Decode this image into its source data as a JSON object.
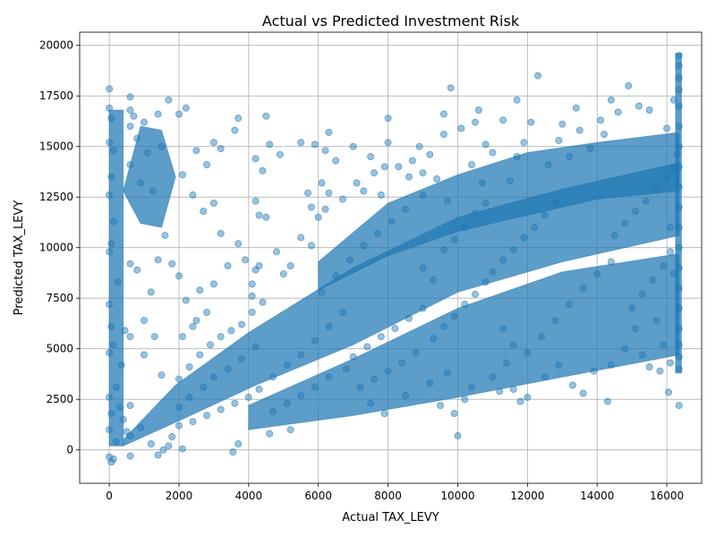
{
  "chart_data": {
    "type": "scatter",
    "title": "Actual vs Predicted Investment Risk",
    "xlabel": "Actual TAX_LEVY",
    "ylabel": "Predicted TAX_LEVY",
    "xlim": [
      -850,
      17000
    ],
    "ylim": [
      -1650,
      20650
    ],
    "xticks": [
      0,
      2000,
      4000,
      6000,
      8000,
      10000,
      12000,
      14000,
      16000
    ],
    "yticks": [
      0,
      2500,
      5000,
      7500,
      10000,
      12500,
      15000,
      17500,
      20000
    ],
    "grid": true,
    "color": "#1f77b4",
    "marker_alpha": 0.45,
    "series": [
      {
        "points": [
          [
            0,
            17850
          ],
          [
            0,
            16900
          ],
          [
            0,
            15200
          ],
          [
            0,
            12600
          ],
          [
            0,
            9800
          ],
          [
            0,
            7200
          ],
          [
            0,
            4800
          ],
          [
            0,
            2600
          ],
          [
            0,
            1000
          ],
          [
            0,
            -350
          ],
          [
            60,
            16400
          ],
          [
            60,
            13500
          ],
          [
            60,
            10200
          ],
          [
            60,
            6100
          ],
          [
            60,
            1800
          ],
          [
            60,
            -600
          ],
          [
            120,
            14800
          ],
          [
            120,
            11300
          ],
          [
            120,
            5200
          ],
          [
            120,
            -450
          ],
          [
            600,
            17450
          ],
          [
            600,
            16800
          ],
          [
            600,
            16000
          ],
          [
            600,
            14100
          ],
          [
            600,
            9200
          ],
          [
            600,
            5600
          ],
          [
            600,
            2200
          ],
          [
            600,
            700
          ],
          [
            600,
            -300
          ],
          [
            700,
            16500
          ],
          [
            800,
            15400
          ],
          [
            900,
            13200
          ],
          [
            1000,
            16200
          ],
          [
            1100,
            14700
          ],
          [
            1250,
            12800
          ],
          [
            1400,
            16600
          ],
          [
            1500,
            15000
          ],
          [
            1700,
            17300
          ],
          [
            800,
            8900
          ],
          [
            1000,
            6400
          ],
          [
            1200,
            7800
          ],
          [
            1400,
            9400
          ],
          [
            1600,
            10600
          ],
          [
            1800,
            9200
          ],
          [
            1000,
            4700
          ],
          [
            1300,
            5600
          ],
          [
            1500,
            3700
          ],
          [
            1400,
            -250
          ],
          [
            1550,
            0
          ],
          [
            1700,
            200
          ],
          [
            1800,
            650
          ],
          [
            1200,
            300
          ],
          [
            900,
            1100
          ],
          [
            200,
            3100
          ],
          [
            300,
            2100
          ],
          [
            400,
            1500
          ],
          [
            500,
            900
          ],
          [
            200,
            400
          ],
          [
            350,
            4200
          ],
          [
            450,
            5900
          ],
          [
            250,
            8300
          ],
          [
            2000,
            16600
          ],
          [
            2200,
            16900
          ],
          [
            2500,
            14800
          ],
          [
            2800,
            14100
          ],
          [
            3000,
            15200
          ],
          [
            3200,
            14900
          ],
          [
            3600,
            15800
          ],
          [
            3700,
            16400
          ],
          [
            2100,
            13600
          ],
          [
            2400,
            12600
          ],
          [
            2700,
            11800
          ],
          [
            3000,
            12200
          ],
          [
            3200,
            10700
          ],
          [
            3400,
            9100
          ],
          [
            3700,
            10200
          ],
          [
            3900,
            9400
          ],
          [
            2000,
            8600
          ],
          [
            2200,
            7400
          ],
          [
            2500,
            6400
          ],
          [
            2800,
            6800
          ],
          [
            3000,
            8200
          ],
          [
            2100,
            5600
          ],
          [
            2400,
            6100
          ],
          [
            2600,
            7900
          ],
          [
            2000,
            3500
          ],
          [
            2300,
            4100
          ],
          [
            2600,
            4700
          ],
          [
            2900,
            5200
          ],
          [
            3200,
            5600
          ],
          [
            3500,
            5900
          ],
          [
            3800,
            6200
          ],
          [
            4100,
            6800
          ],
          [
            2000,
            2100
          ],
          [
            2300,
            2600
          ],
          [
            2700,
            3100
          ],
          [
            3000,
            3600
          ],
          [
            3400,
            4000
          ],
          [
            3800,
            4500
          ],
          [
            4200,
            5100
          ],
          [
            2000,
            1200
          ],
          [
            2400,
            1400
          ],
          [
            2800,
            1700
          ],
          [
            3200,
            2000
          ],
          [
            3600,
            2300
          ],
          [
            4000,
            2600
          ],
          [
            3700,
            300
          ],
          [
            3550,
            -100
          ],
          [
            2100,
            50
          ],
          [
            4200,
            14400
          ],
          [
            4500,
            16500
          ],
          [
            4400,
            13800
          ],
          [
            4600,
            15100
          ],
          [
            4900,
            14600
          ],
          [
            4200,
            12300
          ],
          [
            4300,
            11600
          ],
          [
            4500,
            11500
          ],
          [
            4100,
            8200
          ],
          [
            4200,
            8900
          ],
          [
            4100,
            7600
          ],
          [
            4300,
            9100
          ],
          [
            4800,
            9800
          ],
          [
            5000,
            8700
          ],
          [
            4400,
            7300
          ],
          [
            4300,
            3000
          ],
          [
            4700,
            3600
          ],
          [
            5100,
            4200
          ],
          [
            5500,
            4700
          ],
          [
            5900,
            5400
          ],
          [
            6300,
            6100
          ],
          [
            6700,
            6800
          ],
          [
            4700,
            1900
          ],
          [
            5100,
            2300
          ],
          [
            5500,
            2700
          ],
          [
            5900,
            3100
          ],
          [
            6300,
            3600
          ],
          [
            6800,
            4000
          ],
          [
            5200,
            1000
          ],
          [
            4600,
            800
          ],
          [
            5200,
            9100
          ],
          [
            5500,
            10500
          ],
          [
            5800,
            12000
          ],
          [
            5800,
            10100
          ],
          [
            6000,
            11500
          ],
          [
            5500,
            15200
          ],
          [
            5700,
            12700
          ],
          [
            5900,
            15100
          ],
          [
            6200,
            14800
          ],
          [
            6300,
            15700
          ],
          [
            6500,
            14300
          ],
          [
            6700,
            12400
          ],
          [
            6200,
            11900
          ],
          [
            6300,
            12700
          ],
          [
            6100,
            13200
          ],
          [
            6100,
            7800
          ],
          [
            6500,
            8600
          ],
          [
            6900,
            9400
          ],
          [
            7300,
            10100
          ],
          [
            7700,
            10700
          ],
          [
            8100,
            11300
          ],
          [
            8500,
            11900
          ],
          [
            7000,
            15000
          ],
          [
            7100,
            13200
          ],
          [
            7300,
            12800
          ],
          [
            7500,
            14500
          ],
          [
            7600,
            13700
          ],
          [
            7800,
            12600
          ],
          [
            7900,
            14000
          ],
          [
            7000,
            4600
          ],
          [
            7400,
            5100
          ],
          [
            7800,
            5600
          ],
          [
            8200,
            6000
          ],
          [
            8600,
            6500
          ],
          [
            9000,
            7000
          ],
          [
            7200,
            3100
          ],
          [
            7600,
            3500
          ],
          [
            8000,
            3900
          ],
          [
            8400,
            4300
          ],
          [
            8800,
            4800
          ],
          [
            7900,
            1800
          ],
          [
            7500,
            2300
          ],
          [
            8500,
            2700
          ],
          [
            8000,
            16400
          ],
          [
            8000,
            15200
          ],
          [
            8300,
            14000
          ],
          [
            8600,
            13500
          ],
          [
            8700,
            14300
          ],
          [
            9000,
            12600
          ],
          [
            8900,
            15000
          ],
          [
            9000,
            13700
          ],
          [
            9200,
            14600
          ],
          [
            9400,
            13400
          ],
          [
            9600,
            15600
          ],
          [
            9700,
            12300
          ],
          [
            9800,
            17900
          ],
          [
            9600,
            16600
          ],
          [
            9000,
            9000
          ],
          [
            9300,
            8400
          ],
          [
            9600,
            9900
          ],
          [
            9900,
            10400
          ],
          [
            10200,
            11000
          ],
          [
            10500,
            11700
          ],
          [
            10800,
            12200
          ],
          [
            9200,
            3300
          ],
          [
            9500,
            2200
          ],
          [
            9700,
            3800
          ],
          [
            9900,
            1800
          ],
          [
            10000,
            700
          ],
          [
            10200,
            2500
          ],
          [
            10400,
            3100
          ],
          [
            9300,
            5500
          ],
          [
            9600,
            6100
          ],
          [
            9900,
            6600
          ],
          [
            10200,
            7200
          ],
          [
            10500,
            7700
          ],
          [
            10800,
            8300
          ],
          [
            10100,
            15900
          ],
          [
            10400,
            14100
          ],
          [
            10500,
            16200
          ],
          [
            10700,
            13200
          ],
          [
            10800,
            15100
          ],
          [
            11000,
            14700
          ],
          [
            10600,
            16800
          ],
          [
            11000,
            3600
          ],
          [
            11200,
            2900
          ],
          [
            11400,
            4300
          ],
          [
            11600,
            5200
          ],
          [
            11800,
            2400
          ],
          [
            11600,
            3000
          ],
          [
            11300,
            6000
          ],
          [
            11000,
            8800
          ],
          [
            11300,
            9400
          ],
          [
            11600,
            9900
          ],
          [
            11900,
            10500
          ],
          [
            12200,
            11000
          ],
          [
            12500,
            11600
          ],
          [
            12800,
            12200
          ],
          [
            11500,
            13300
          ],
          [
            11700,
            14500
          ],
          [
            11900,
            15200
          ],
          [
            11700,
            17300
          ],
          [
            11300,
            16300
          ],
          [
            12100,
            16200
          ],
          [
            12300,
            18500
          ],
          [
            12000,
            4800
          ],
          [
            12400,
            5600
          ],
          [
            12800,
            6400
          ],
          [
            13200,
            7200
          ],
          [
            13600,
            8000
          ],
          [
            14000,
            8700
          ],
          [
            14400,
            9300
          ],
          [
            12000,
            2600
          ],
          [
            12500,
            3600
          ],
          [
            12900,
            4200
          ],
          [
            13300,
            3200
          ],
          [
            13600,
            2800
          ],
          [
            13900,
            3900
          ],
          [
            14300,
            2400
          ],
          [
            12600,
            14100
          ],
          [
            12900,
            15300
          ],
          [
            13200,
            14500
          ],
          [
            13500,
            15800
          ],
          [
            13800,
            14900
          ],
          [
            14100,
            16300
          ],
          [
            14400,
            17300
          ],
          [
            13000,
            16100
          ],
          [
            13400,
            16900
          ],
          [
            14200,
            15600
          ],
          [
            14600,
            16700
          ],
          [
            14900,
            18000
          ],
          [
            15200,
            17000
          ],
          [
            15500,
            16800
          ],
          [
            14400,
            4200
          ],
          [
            14800,
            5000
          ],
          [
            15100,
            6000
          ],
          [
            15300,
            4700
          ],
          [
            15500,
            4100
          ],
          [
            15900,
            5200
          ],
          [
            15800,
            3900
          ],
          [
            14500,
            10600
          ],
          [
            14800,
            11200
          ],
          [
            15100,
            11800
          ],
          [
            15400,
            12300
          ],
          [
            15700,
            12900
          ],
          [
            16000,
            13400
          ],
          [
            16200,
            13900
          ],
          [
            15000,
            7000
          ],
          [
            15300,
            7700
          ],
          [
            15600,
            8400
          ],
          [
            15900,
            9100
          ],
          [
            16100,
            9800
          ],
          [
            15700,
            6400
          ],
          [
            16200,
            8700
          ],
          [
            16050,
            2850
          ],
          [
            16100,
            4300
          ],
          [
            16000,
            15900
          ],
          [
            16200,
            17300
          ],
          [
            16300,
            14600
          ],
          [
            16100,
            11000
          ],
          [
            16350,
            19500
          ],
          [
            16350,
            19000
          ],
          [
            16350,
            18400
          ],
          [
            16350,
            17800
          ],
          [
            16350,
            17000
          ],
          [
            16350,
            16000
          ],
          [
            16350,
            15000
          ],
          [
            16350,
            14000
          ],
          [
            16350,
            13000
          ],
          [
            16350,
            12000
          ],
          [
            16350,
            11000
          ],
          [
            16350,
            10000
          ],
          [
            16350,
            9000
          ],
          [
            16350,
            8000
          ],
          [
            16350,
            7000
          ],
          [
            16350,
            6000
          ],
          [
            16350,
            5200
          ],
          [
            16350,
            4600
          ],
          [
            16350,
            4000
          ],
          [
            16350,
            2200
          ]
        ]
      }
    ]
  }
}
